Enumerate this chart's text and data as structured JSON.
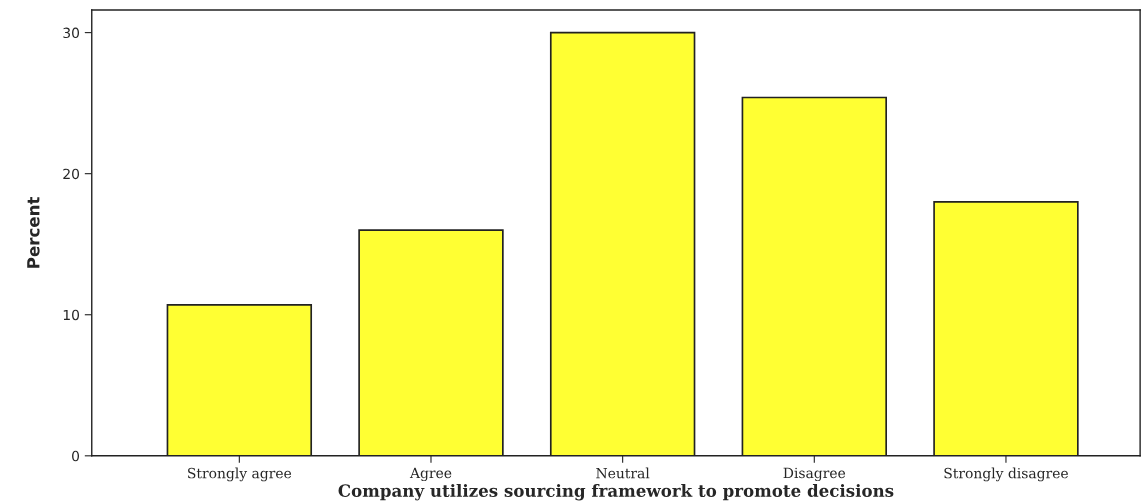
{
  "chart_data": {
    "type": "bar",
    "xlabel": "Company utilizes sourcing framework to promote decisions",
    "ylabel": "Percent",
    "categories": [
      "Strongly agree",
      "Agree",
      "Neutral",
      "Disagree",
      "Strongly disagree"
    ],
    "values": [
      10.7,
      16.0,
      30.0,
      25.4,
      18.0
    ],
    "color": "#ffff33",
    "ylim": [
      0,
      31.6
    ],
    "yticks": [
      0,
      10,
      20,
      30
    ],
    "grid": false
  }
}
